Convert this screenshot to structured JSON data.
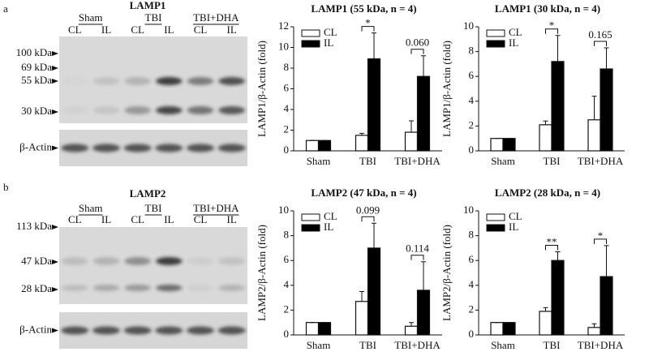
{
  "blots": [
    {
      "panel": "a",
      "title": "LAMP1",
      "groups": [
        "Sham",
        "TBI",
        "TBI+DHA"
      ],
      "lanes": [
        "CL",
        "IL",
        "CL",
        "IL",
        "CL",
        "IL"
      ],
      "markers": [
        "100 kDa",
        "69 kDa",
        "55 kDa",
        "30 kDa"
      ],
      "loading": "β-Actin"
    },
    {
      "panel": "b",
      "title": "LAMP2",
      "groups": [
        "Sham",
        "TBI",
        "TBI+DHA"
      ],
      "lanes": [
        "CL",
        "IL",
        "CL",
        "IL",
        "CL",
        "IL"
      ],
      "markers": [
        "113 kDa",
        "47 kDa",
        "28 kDa"
      ],
      "loading": "β-Actin"
    }
  ],
  "chart_data": [
    {
      "type": "bar",
      "title": "LAMP1 (55 kDa, n = 4)",
      "y_label": "LAMP1/β-Actin (fold)",
      "categories": [
        "Sham",
        "TBI",
        "TBI+DHA"
      ],
      "series": [
        {
          "name": "CL",
          "color": "#ffffff",
          "values": [
            1,
            1.5,
            1.8
          ],
          "errors": [
            0,
            0.2,
            1.1
          ]
        },
        {
          "name": "IL",
          "color": "#000000",
          "values": [
            1,
            8.9,
            7.2
          ],
          "errors": [
            0,
            2.5,
            2.0
          ]
        }
      ],
      "ylim": [
        0,
        12
      ],
      "yticks": [
        0,
        2,
        4,
        6,
        8,
        10,
        12
      ],
      "legend": "top-left",
      "annotations": [
        {
          "label": "*",
          "category": "TBI"
        },
        {
          "label": "0.060",
          "category": "TBI+DHA"
        }
      ]
    },
    {
      "type": "bar",
      "title": "LAMP1 (30 kDa, n = 4)",
      "y_label": "LAMP1/β-Actin (fold)",
      "categories": [
        "Sham",
        "TBI",
        "TBI+DHA"
      ],
      "series": [
        {
          "name": "CL",
          "color": "#ffffff",
          "values": [
            1,
            2.1,
            2.5
          ],
          "errors": [
            0,
            0.3,
            1.9
          ]
        },
        {
          "name": "IL",
          "color": "#000000",
          "values": [
            1,
            7.2,
            6.6
          ],
          "errors": [
            0,
            2.1,
            1.7
          ]
        }
      ],
      "ylim": [
        0,
        10
      ],
      "yticks": [
        0,
        2,
        4,
        6,
        8,
        10
      ],
      "legend": "top-left",
      "annotations": [
        {
          "label": "*",
          "category": "TBI"
        },
        {
          "label": "0.165",
          "category": "TBI+DHA"
        }
      ]
    },
    {
      "type": "bar",
      "title": "LAMP2 (47 kDa, n = 4)",
      "y_label": "LAMP2/β-Actin (fold)",
      "categories": [
        "Sham",
        "TBI",
        "TBI+DHA"
      ],
      "series": [
        {
          "name": "CL",
          "color": "#ffffff",
          "values": [
            1,
            2.7,
            0.7
          ],
          "errors": [
            0,
            0.8,
            0.3
          ]
        },
        {
          "name": "IL",
          "color": "#000000",
          "values": [
            1,
            7.0,
            3.6
          ],
          "errors": [
            0,
            2.0,
            2.3
          ]
        }
      ],
      "ylim": [
        0,
        10
      ],
      "yticks": [
        0,
        2,
        4,
        6,
        8,
        10
      ],
      "legend": "top-left",
      "annotations": [
        {
          "label": "0.099",
          "category": "TBI"
        },
        {
          "label": "0.114",
          "category": "TBI+DHA"
        }
      ]
    },
    {
      "type": "bar",
      "title": "LAMP2 (28 kDa, n = 4)",
      "y_label": "LAMP2/β-Actin (fold)",
      "categories": [
        "Sham",
        "TBI",
        "TBI+DHA"
      ],
      "series": [
        {
          "name": "CL",
          "color": "#ffffff",
          "values": [
            1,
            1.9,
            0.6
          ],
          "errors": [
            0,
            0.3,
            0.3
          ]
        },
        {
          "name": "IL",
          "color": "#000000",
          "values": [
            1,
            6.0,
            4.7
          ],
          "errors": [
            0,
            0.7,
            2.5
          ]
        }
      ],
      "ylim": [
        0,
        10
      ],
      "yticks": [
        0,
        2,
        4,
        6,
        8,
        10
      ],
      "legend": "top-left",
      "annotations": [
        {
          "label": "**",
          "category": "TBI"
        },
        {
          "label": "*",
          "category": "TBI+DHA"
        }
      ]
    }
  ]
}
